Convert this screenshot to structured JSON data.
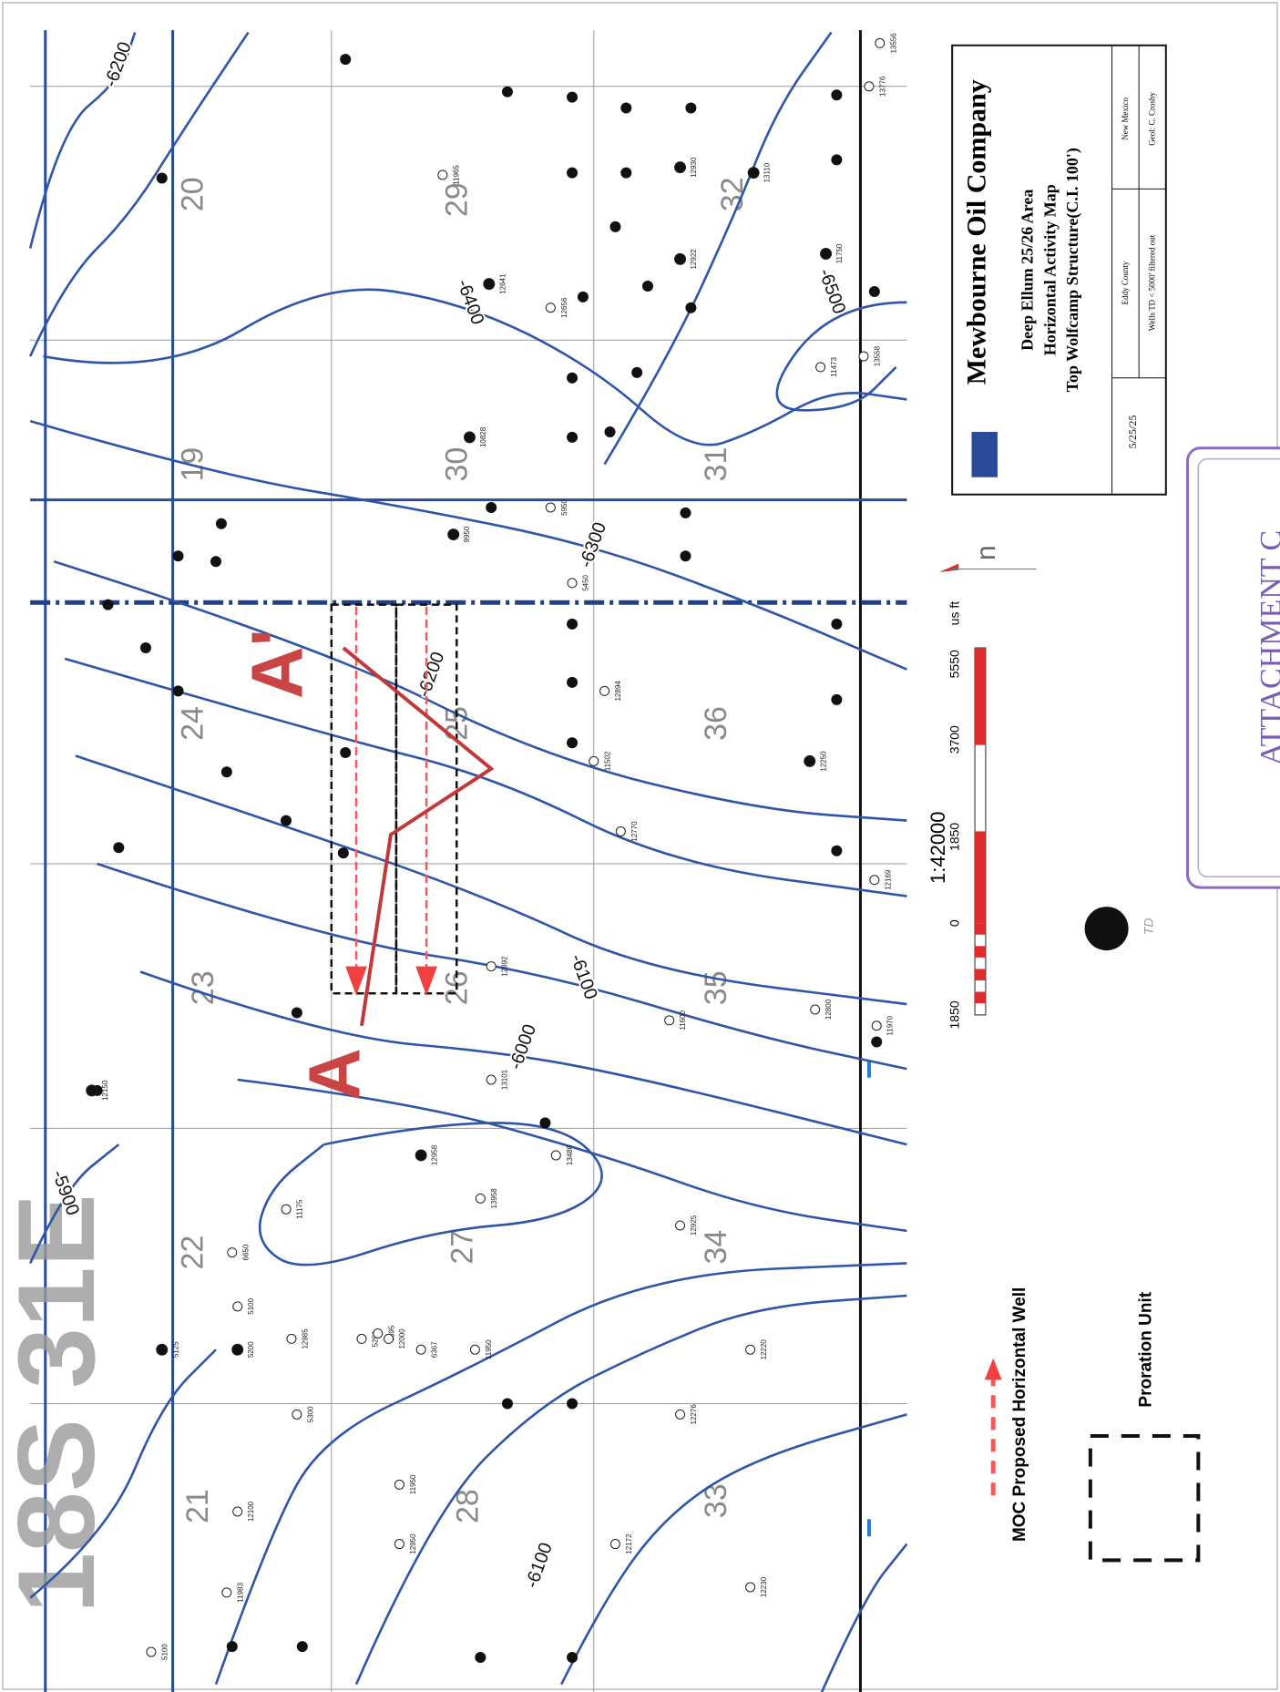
{
  "township": "18S 31E",
  "sections": [
    "19",
    "20",
    "21",
    "22",
    "23",
    "24",
    "25",
    "26",
    "27",
    "28",
    "29",
    "30",
    "31",
    "32",
    "33",
    "34",
    "35",
    "36"
  ],
  "contours": [
    "-6200",
    "-6400",
    "-6300",
    "-6500",
    "-6200",
    "-6100",
    "-6000",
    "-5900",
    "-6100"
  ],
  "cross_section": {
    "start": "A",
    "end": "A'"
  },
  "wells": [
    "11965",
    "12641",
    "12656",
    "12930",
    "12922",
    "13110",
    "11750",
    "11473",
    "13558",
    "13776",
    "13556",
    "10828",
    "5950",
    "9950",
    "5450",
    "11502",
    "12894",
    "12770",
    "12250",
    "12169",
    "11970",
    "12800",
    "11600",
    "12892",
    "13101",
    "13486",
    "13958",
    "12925",
    "12220",
    "12276",
    "12230",
    "12172",
    "12950",
    "11950",
    "5300",
    "12985",
    "5100",
    "5200",
    "12100",
    "5125",
    "11983",
    "5100",
    "6650",
    "11175",
    "12958",
    "5250",
    "6395",
    "12000",
    "6367",
    "11950",
    "12150"
  ],
  "title_block": {
    "company": "Mewbourne Oil Company",
    "area": "Deep Ellum 25/26 Area",
    "map_title": "Horizontal Activity Map",
    "structure": "Top Wolfcamp Structure(C.I. 100')",
    "date": "5/25/25",
    "county": "Eddy County",
    "state": "New Mexico",
    "filter": "Wells TD < 5000' filtered out",
    "geologist": "Geol: C. Crosby"
  },
  "scale": {
    "ratio": "1:42000",
    "ticks": [
      "1850",
      "0",
      "1850",
      "3700",
      "5550"
    ],
    "unit": "us ft"
  },
  "legend": {
    "well": "MOC Proposed Horizontal Well",
    "proration": "Proration Unit",
    "td": "TD"
  },
  "attachment": "ATTACHMENT C"
}
